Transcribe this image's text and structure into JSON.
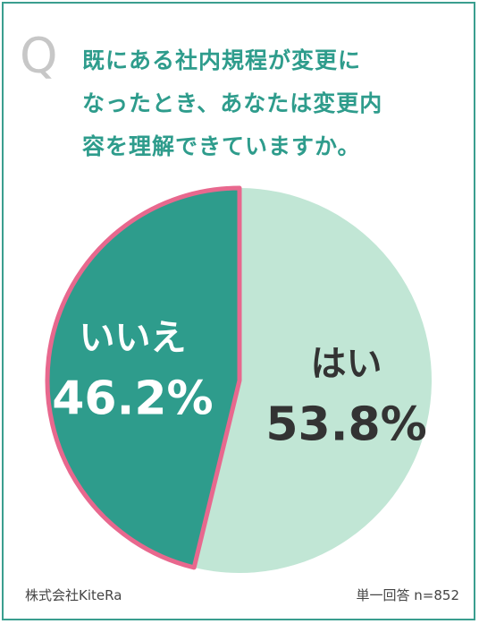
{
  "question": {
    "mark": "Q",
    "lines": [
      "既にある社内規程が変更に",
      "なったとき、あなたは変更内",
      "容を理解できていますか。"
    ]
  },
  "chart_data": {
    "type": "pie",
    "slices": [
      {
        "label": "はい",
        "value": 53.8,
        "display": "53.8%",
        "color": "#c1e6d5",
        "text_color": "#333333"
      },
      {
        "label": "いいえ",
        "value": 46.2,
        "display": "46.2%",
        "color": "#2e9c8c",
        "text_color": "#ffffff"
      }
    ],
    "start": "12 o'clock, clockwise",
    "highlight_color": "#e8688e"
  },
  "footer": {
    "source": "株式会社KiteRa",
    "note": "単一回答 n=852"
  },
  "colors": {
    "frame": "#3a9e8f",
    "question_text": "#2e9c8c",
    "q_mark": "#c7c7c7"
  }
}
